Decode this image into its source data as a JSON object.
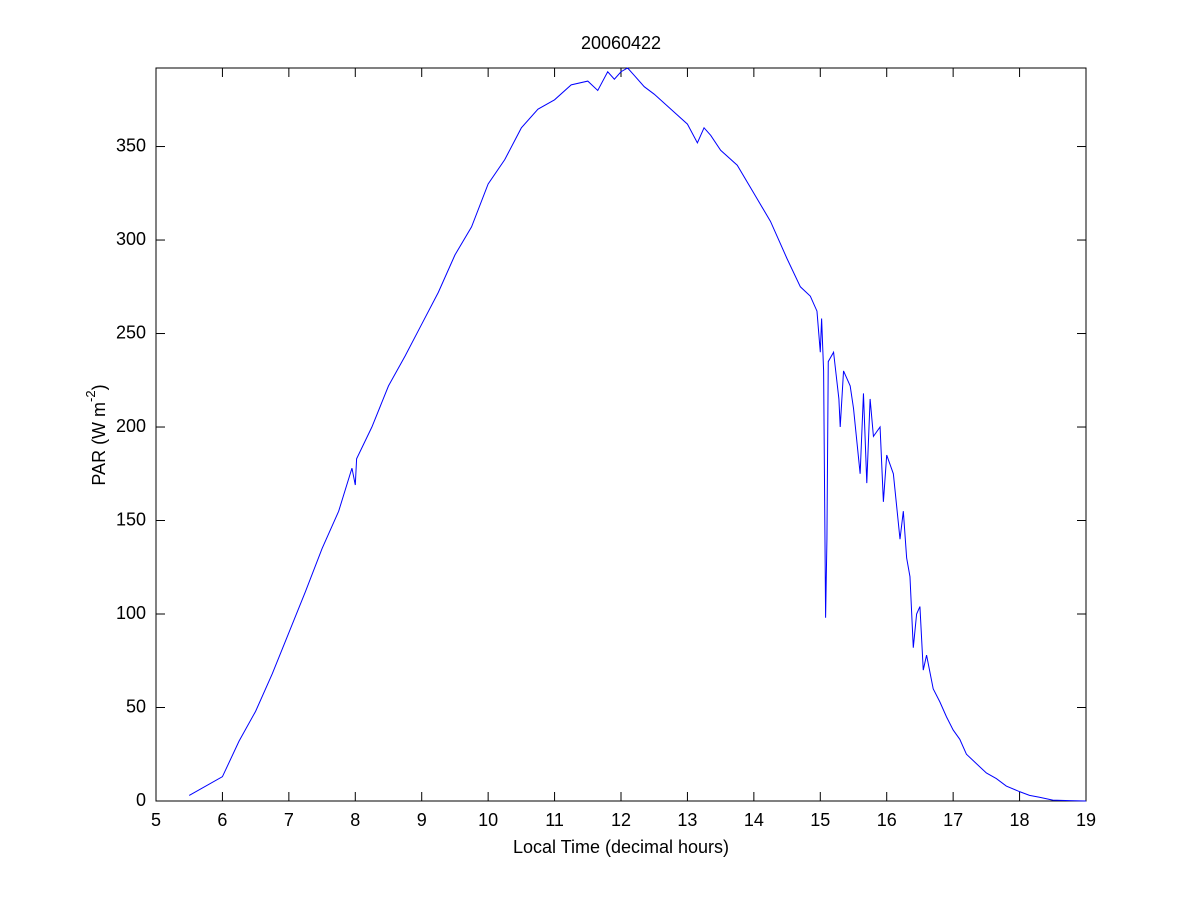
{
  "chart_data": {
    "type": "line",
    "title": "20060422",
    "xlabel": "Local Time (decimal hours)",
    "ylabel": {
      "text": "PAR (W m",
      "superscript": "-2",
      "suffix": ")"
    },
    "xlim": [
      5,
      19
    ],
    "ylim": [
      0,
      392
    ],
    "xticks": [
      5,
      6,
      7,
      8,
      9,
      10,
      11,
      12,
      13,
      14,
      15,
      16,
      17,
      18,
      19
    ],
    "yticks": [
      0,
      50,
      100,
      150,
      200,
      250,
      300,
      350
    ],
    "grid": false,
    "x": [
      5.5,
      6.0,
      6.25,
      6.5,
      6.75,
      7.0,
      7.25,
      7.5,
      7.75,
      7.95,
      8.0,
      8.02,
      8.25,
      8.5,
      8.75,
      9.0,
      9.25,
      9.5,
      9.75,
      10.0,
      10.25,
      10.5,
      10.75,
      11.0,
      11.25,
      11.5,
      11.65,
      11.8,
      11.9,
      12.0,
      12.1,
      12.2,
      12.35,
      12.5,
      12.75,
      13.0,
      13.15,
      13.25,
      13.35,
      13.5,
      13.75,
      14.0,
      14.25,
      14.5,
      14.7,
      14.85,
      14.95,
      15.0,
      15.02,
      15.05,
      15.08,
      15.1,
      15.12,
      15.2,
      15.28,
      15.3,
      15.35,
      15.45,
      15.5,
      15.6,
      15.65,
      15.7,
      15.75,
      15.8,
      15.9,
      15.95,
      16.0,
      16.1,
      16.2,
      16.25,
      16.3,
      16.35,
      16.4,
      16.45,
      16.5,
      16.55,
      16.6,
      16.7,
      16.8,
      16.9,
      17.0,
      17.1,
      17.2,
      17.35,
      17.5,
      17.65,
      17.8,
      18.0,
      18.15,
      18.3,
      18.5,
      18.75,
      19.0
    ],
    "series": [
      {
        "name": "PAR",
        "color": "#0000ff",
        "values": [
          3,
          13,
          32,
          48,
          68,
          90,
          112,
          135,
          155,
          178,
          169,
          183,
          200,
          222,
          238,
          255,
          272,
          292,
          307,
          330,
          343,
          360,
          370,
          375,
          383,
          385,
          380,
          390,
          386,
          390,
          392,
          388,
          382,
          378,
          370,
          362,
          352,
          360,
          356,
          348,
          340,
          325,
          310,
          290,
          275,
          270,
          262,
          240,
          258,
          230,
          98,
          140,
          235,
          240,
          215,
          200,
          230,
          222,
          210,
          175,
          218,
          170,
          215,
          195,
          200,
          160,
          185,
          175,
          140,
          155,
          130,
          120,
          82,
          100,
          104,
          70,
          78,
          60,
          53,
          45,
          38,
          33,
          25,
          20,
          15,
          12,
          8,
          5,
          3,
          2,
          0.5,
          0.2,
          0
        ]
      }
    ]
  }
}
